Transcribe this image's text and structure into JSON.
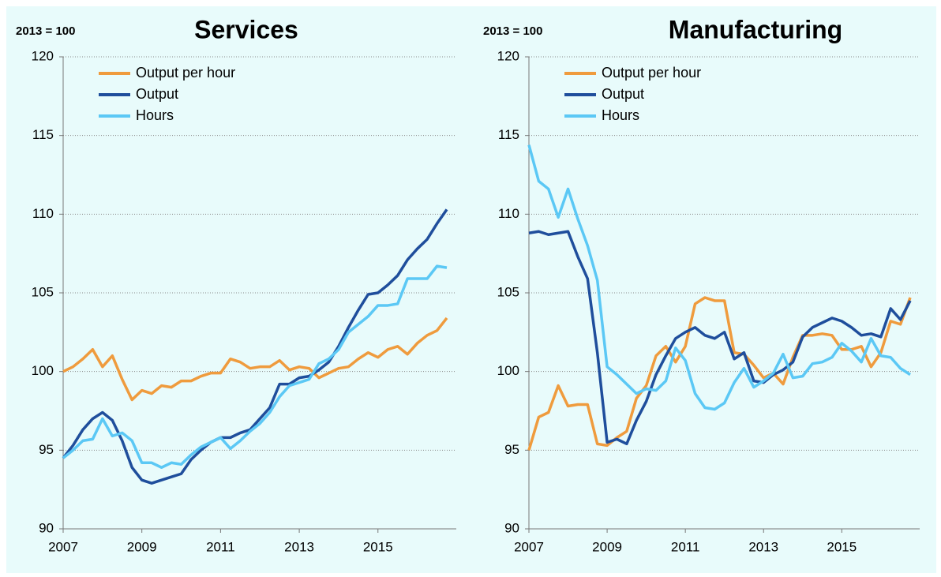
{
  "chart_data": [
    {
      "type": "line",
      "title": "Services",
      "subtitle": "2013 = 100",
      "categories": [
        "2007",
        null,
        null,
        null,
        null,
        null,
        null,
        null,
        "2009",
        null,
        null,
        null,
        null,
        null,
        null,
        null,
        "2011",
        null,
        null,
        null,
        null,
        null,
        null,
        null,
        "2013",
        null,
        null,
        null,
        null,
        null,
        null,
        null,
        "2015",
        null,
        null,
        null,
        null,
        null,
        null,
        null
      ],
      "ylim": [
        90,
        120
      ],
      "yticks": [
        90,
        95,
        100,
        105,
        110,
        115,
        120
      ],
      "grid": true,
      "legend": "top-left",
      "series": [
        {
          "name": "Output per hour",
          "color": "#ef9b3d",
          "values": [
            100,
            100.3,
            100.8,
            101.4,
            100.3,
            101,
            99.5,
            98.2,
            98.8,
            98.6,
            99.1,
            99,
            99.4,
            99.4,
            99.7,
            99.9,
            99.9,
            100.8,
            100.6,
            100.2,
            100.3,
            100.3,
            100.7,
            100.1,
            100.3,
            100.2,
            99.6,
            99.9,
            100.2,
            100.3,
            100.8,
            101.2,
            100.9,
            101.4,
            101.6,
            101.1,
            101.8,
            102.3,
            102.6,
            103.4
          ]
        },
        {
          "name": "Output",
          "color": "#1f4e9c",
          "values": [
            94.5,
            95.3,
            96.3,
            97,
            97.4,
            96.9,
            95.6,
            93.9,
            93.1,
            92.9,
            93.1,
            93.3,
            93.5,
            94.4,
            95,
            95.5,
            95.8,
            95.8,
            96.1,
            96.3,
            97,
            97.7,
            99.2,
            99.2,
            99.6,
            99.7,
            100.1,
            100.6,
            101.6,
            102.8,
            103.9,
            104.9,
            105,
            105.5,
            106.1,
            107.1,
            107.8,
            108.4,
            109.4,
            110.3
          ]
        },
        {
          "name": "Hours",
          "color": "#5bc8f5",
          "values": [
            94.5,
            95,
            95.6,
            95.7,
            97,
            95.9,
            96.1,
            95.6,
            94.2,
            94.2,
            93.9,
            94.2,
            94.1,
            94.7,
            95.2,
            95.5,
            95.8,
            95.1,
            95.6,
            96.2,
            96.7,
            97.4,
            98.4,
            99.1,
            99.3,
            99.5,
            100.5,
            100.8,
            101.4,
            102.5,
            103,
            103.5,
            104.2,
            104.2,
            104.3,
            105.9,
            105.9,
            105.9,
            106.7,
            106.6
          ]
        }
      ]
    },
    {
      "type": "line",
      "title": "Manufacturing",
      "subtitle": "2013 = 100",
      "categories": [
        "2007",
        null,
        null,
        null,
        null,
        null,
        null,
        null,
        "2009",
        null,
        null,
        null,
        null,
        null,
        null,
        null,
        "2011",
        null,
        null,
        null,
        null,
        null,
        null,
        null,
        "2013",
        null,
        null,
        null,
        null,
        null,
        null,
        null,
        "2015",
        null,
        null,
        null,
        null,
        null,
        null,
        null
      ],
      "ylim": [
        90,
        120
      ],
      "yticks": [
        90,
        95,
        100,
        105,
        110,
        115,
        120
      ],
      "grid": true,
      "legend": "top-left",
      "series": [
        {
          "name": "Output per hour",
          "color": "#ef9b3d",
          "values": [
            95,
            97.1,
            97.4,
            99.1,
            97.8,
            97.9,
            97.9,
            95.4,
            95.3,
            95.8,
            96.2,
            98.3,
            99.1,
            101,
            101.6,
            100.6,
            101.6,
            104.3,
            104.7,
            104.5,
            104.5,
            101.2,
            101.1,
            100.4,
            99.6,
            99.9,
            99.2,
            100.9,
            102.3,
            102.3,
            102.4,
            102.3,
            101.4,
            101.4,
            101.6,
            100.3,
            101.2,
            103.2,
            103,
            104.7
          ]
        },
        {
          "name": "Output",
          "color": "#1f4e9c",
          "values": [
            108.8,
            108.9,
            108.7,
            108.8,
            108.9,
            107.3,
            105.9,
            101.2,
            95.5,
            95.7,
            95.4,
            96.9,
            98.1,
            99.8,
            101,
            102.1,
            102.5,
            102.8,
            102.3,
            102.1,
            102.5,
            100.8,
            101.2,
            99.4,
            99.3,
            99.8,
            100.1,
            100.6,
            102.2,
            102.8,
            103.1,
            103.4,
            103.2,
            102.8,
            102.3,
            102.4,
            102.2,
            104,
            103.3,
            104.5
          ]
        },
        {
          "name": "Hours",
          "color": "#5bc8f5",
          "values": [
            114.4,
            112.1,
            111.6,
            109.8,
            111.6,
            109.7,
            108,
            105.8,
            100.3,
            99.8,
            99.2,
            98.6,
            98.9,
            98.8,
            99.4,
            101.5,
            100.7,
            98.6,
            97.7,
            97.6,
            98,
            99.3,
            100.2,
            99,
            99.4,
            99.9,
            101.1,
            99.6,
            99.7,
            100.5,
            100.6,
            100.9,
            101.8,
            101.3,
            100.6,
            102.1,
            101,
            100.9,
            100.2,
            99.8
          ]
        }
      ]
    }
  ]
}
